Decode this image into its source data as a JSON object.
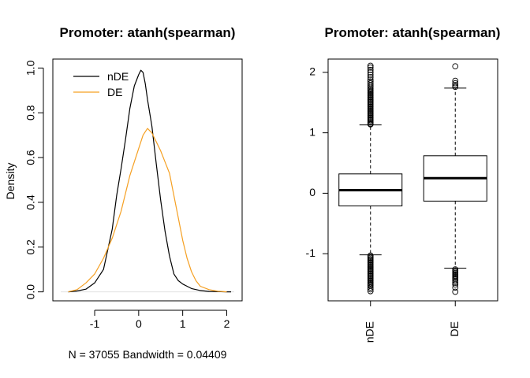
{
  "colors": {
    "nDE": "#000000",
    "DE": "#f5a023",
    "zero_line": "#e0e0e0"
  },
  "chart_data": [
    {
      "type": "line",
      "title": "Promoter: atanh(spearman)",
      "xlabel": "N = 37055   Bandwidth = 0.04409",
      "ylabel": "Density",
      "xlim": [
        -1.95,
        2.35
      ],
      "ylim": [
        -0.04,
        1.04
      ],
      "x_ticks": [
        -1,
        0,
        1,
        2
      ],
      "y_ticks": [
        0.0,
        0.2,
        0.4,
        0.6,
        0.8,
        1.0
      ],
      "y_tick_labels": [
        "0.0",
        "0.2",
        "0.4",
        "0.6",
        "0.8",
        "1.0"
      ],
      "legend": {
        "position": "top-left",
        "entries": [
          "nDE",
          "DE"
        ]
      },
      "series": [
        {
          "name": "nDE",
          "x": [
            -1.6,
            -1.4,
            -1.2,
            -1.0,
            -0.8,
            -0.6,
            -0.5,
            -0.4,
            -0.3,
            -0.2,
            -0.1,
            0.0,
            0.05,
            0.1,
            0.15,
            0.2,
            0.3,
            0.4,
            0.5,
            0.6,
            0.7,
            0.8,
            0.9,
            1.0,
            1.1,
            1.2,
            1.4,
            1.6,
            1.8,
            2.0,
            2.1
          ],
          "y": [
            0.0,
            0.004,
            0.012,
            0.04,
            0.1,
            0.28,
            0.43,
            0.55,
            0.68,
            0.82,
            0.92,
            0.97,
            0.99,
            0.98,
            0.93,
            0.86,
            0.74,
            0.57,
            0.41,
            0.27,
            0.16,
            0.08,
            0.05,
            0.035,
            0.025,
            0.015,
            0.006,
            0.002,
            0.001,
            0.0,
            0.0
          ]
        },
        {
          "name": "DE",
          "x": [
            -1.6,
            -1.4,
            -1.2,
            -1.0,
            -0.8,
            -0.6,
            -0.4,
            -0.2,
            0.0,
            0.1,
            0.2,
            0.3,
            0.4,
            0.5,
            0.6,
            0.7,
            0.8,
            0.9,
            1.0,
            1.1,
            1.2,
            1.3,
            1.4,
            1.6,
            1.8,
            2.0
          ],
          "y": [
            0.0,
            0.01,
            0.04,
            0.08,
            0.15,
            0.24,
            0.36,
            0.52,
            0.64,
            0.7,
            0.73,
            0.71,
            0.67,
            0.63,
            0.58,
            0.53,
            0.43,
            0.33,
            0.23,
            0.15,
            0.09,
            0.05,
            0.025,
            0.01,
            0.003,
            0.0
          ]
        }
      ]
    },
    {
      "type": "box",
      "title": "Promoter: atanh(spearman)",
      "categories": [
        "nDE",
        "DE"
      ],
      "ylim": [
        -1.78,
        2.22
      ],
      "y_ticks": [
        -1,
        0,
        1,
        2
      ],
      "boxes": [
        {
          "name": "nDE",
          "whisker_low": -1.02,
          "q1": -0.21,
          "median": 0.05,
          "q3": 0.32,
          "whisker_high": 1.13,
          "outliers_high": [
            1.14,
            1.15,
            1.17,
            1.19,
            1.21,
            1.23,
            1.25,
            1.27,
            1.29,
            1.31,
            1.33,
            1.35,
            1.37,
            1.39,
            1.41,
            1.43,
            1.45,
            1.47,
            1.49,
            1.51,
            1.53,
            1.55,
            1.57,
            1.59,
            1.61,
            1.63,
            1.65,
            1.67,
            1.69,
            1.71,
            1.73,
            1.76,
            1.79,
            1.82,
            1.85,
            1.88,
            1.92,
            1.96,
            2.0,
            2.04,
            2.08,
            2.11
          ],
          "outliers_low": [
            -1.03,
            -1.05,
            -1.07,
            -1.09,
            -1.11,
            -1.13,
            -1.15,
            -1.17,
            -1.19,
            -1.21,
            -1.23,
            -1.25,
            -1.27,
            -1.29,
            -1.31,
            -1.33,
            -1.35,
            -1.37,
            -1.39,
            -1.41,
            -1.43,
            -1.45,
            -1.47,
            -1.49,
            -1.51,
            -1.53,
            -1.56,
            -1.59,
            -1.62
          ]
        },
        {
          "name": "DE",
          "whisker_low": -1.24,
          "q1": -0.13,
          "median": 0.25,
          "q3": 0.62,
          "whisker_high": 1.74,
          "outliers_high": [
            1.76,
            1.79,
            1.82,
            1.86,
            2.1
          ],
          "outliers_low": [
            -1.26,
            -1.28,
            -1.3,
            -1.32,
            -1.34,
            -1.36,
            -1.38,
            -1.4,
            -1.42,
            -1.45,
            -1.48,
            -1.51,
            -1.56,
            -1.63
          ]
        }
      ]
    }
  ]
}
